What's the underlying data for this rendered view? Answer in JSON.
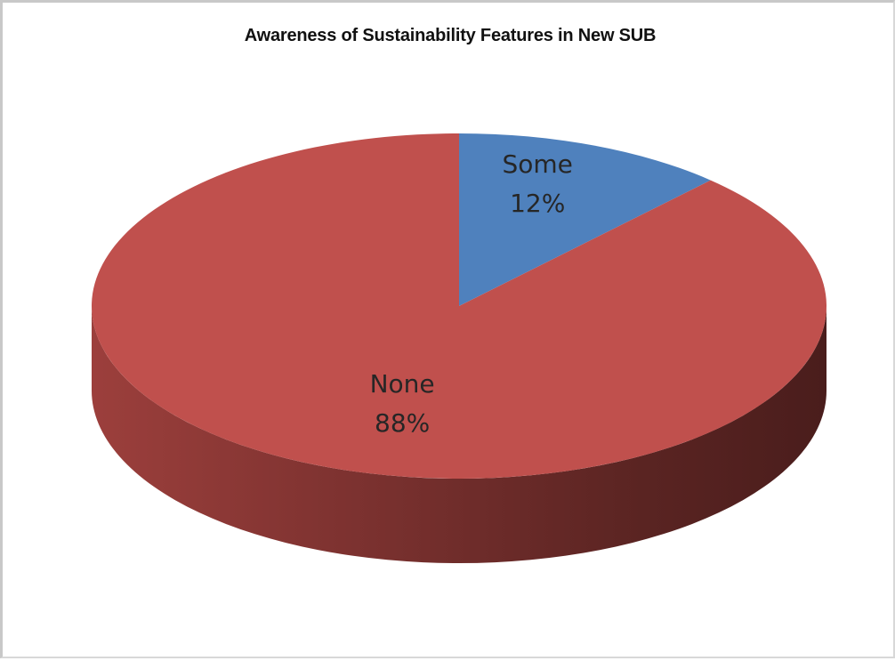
{
  "chart_data": {
    "type": "pie",
    "title": "Awareness of Sustainability Features in New SUB",
    "slices": [
      {
        "label": "Some",
        "value": 12,
        "value_label": "12%",
        "color": "#4f81bd"
      },
      {
        "label": "None",
        "value": 88,
        "value_label": "88%",
        "color": "#c0504d"
      }
    ],
    "legend": "none",
    "style": "3d"
  }
}
